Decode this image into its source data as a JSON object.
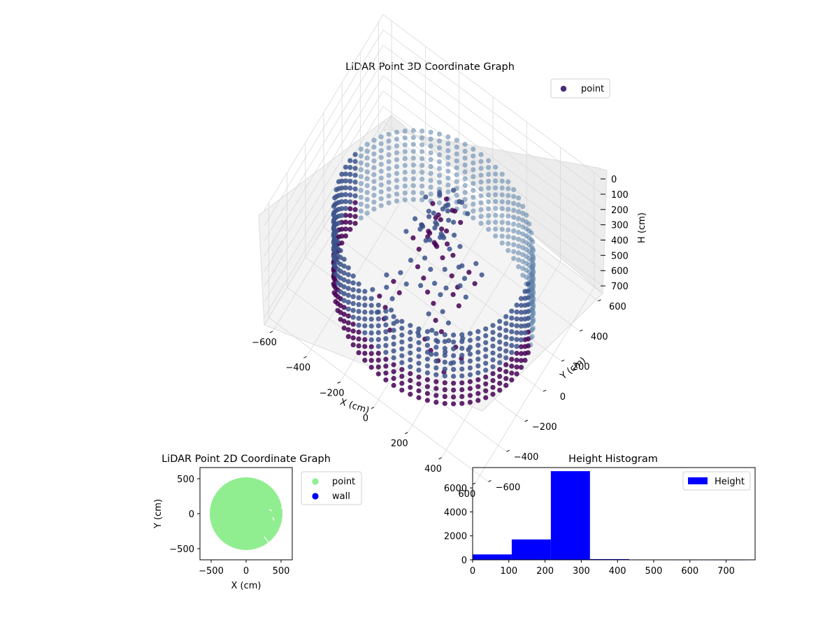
{
  "figure": {
    "charts": [
      "3d-scatter",
      "2d-scatter",
      "histogram"
    ]
  },
  "chart_data": [
    {
      "type": "scatter",
      "projection": "3d",
      "title": "LiDAR Point 3D Coordinate Graph",
      "xlabel": "X (cm)",
      "ylabel": "Y (cm)",
      "zlabel": "H (cm)",
      "xticks": [
        "−600",
        "−400",
        "−200",
        "0",
        "200",
        "400",
        "600"
      ],
      "yticks": [
        "−600",
        "−400",
        "−200",
        "0",
        "200",
        "400",
        "600"
      ],
      "zticks": [
        "0",
        "100",
        "200",
        "300",
        "400",
        "500",
        "600",
        "700"
      ],
      "xlim": [
        -650,
        650
      ],
      "ylim": [
        -650,
        650
      ],
      "zlim": [
        750,
        0
      ],
      "z_inverted": true,
      "grid": true,
      "legend": {
        "position": "top-right",
        "entries": [
          {
            "name": "point",
            "color": "#472c7a"
          }
        ]
      },
      "description_shape": "ring",
      "ring": {
        "radius": 520,
        "height_min": 250,
        "height_max": 720
      },
      "colors": {
        "deep": "#440154",
        "mid": "#3b528b",
        "light": "#5a7fa8"
      }
    },
    {
      "type": "scatter",
      "title": "LiDAR Point 2D Coordinate Graph",
      "xlabel": "X (cm)",
      "ylabel": "Y (cm)",
      "xticks": [
        "−500",
        "0",
        "500"
      ],
      "yticks": [
        "500",
        "0",
        "−500"
      ],
      "xlim": [
        -660,
        660
      ],
      "ylim": [
        -660,
        660
      ],
      "disc_radius": 520,
      "legend": {
        "position": "outside-right",
        "entries": [
          {
            "name": "point",
            "color": "#90ee90"
          },
          {
            "name": "wall",
            "color": "#0000ff"
          }
        ]
      }
    },
    {
      "type": "bar",
      "title": "Height Histogram",
      "xticks": [
        "0",
        "100",
        "200",
        "300",
        "400",
        "500",
        "600",
        "700"
      ],
      "yticks": [
        "0",
        "2000",
        "4000",
        "6000"
      ],
      "xlim": [
        0,
        780
      ],
      "ylim": [
        0,
        7700
      ],
      "bins": [
        {
          "x0": 0,
          "x1": 108,
          "value": 450
        },
        {
          "x0": 108,
          "x1": 216,
          "value": 1700
        },
        {
          "x0": 216,
          "x1": 324,
          "value": 7400
        },
        {
          "x0": 324,
          "x1": 432,
          "value": 60
        },
        {
          "x0": 432,
          "x1": 540,
          "value": 5
        },
        {
          "x0": 540,
          "x1": 648,
          "value": 3
        },
        {
          "x0": 648,
          "x1": 756,
          "value": 2
        }
      ],
      "bar_color": "#0000ff",
      "legend": {
        "position": "top-right",
        "entries": [
          {
            "name": "Height",
            "color": "#0000ff"
          }
        ]
      }
    }
  ]
}
